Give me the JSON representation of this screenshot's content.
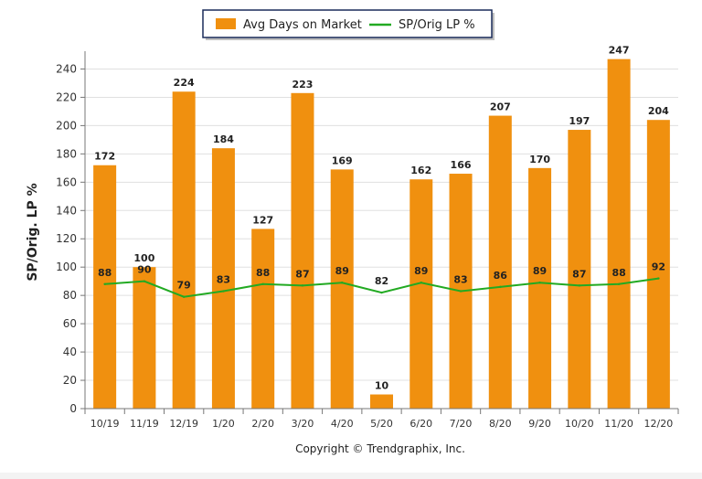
{
  "chart_data": {
    "type": "bar",
    "categories": [
      "10/19",
      "11/19",
      "12/19",
      "1/20",
      "2/20",
      "3/20",
      "4/20",
      "5/20",
      "6/20",
      "7/20",
      "8/20",
      "9/20",
      "10/20",
      "11/20",
      "12/20"
    ],
    "series": [
      {
        "name": "Avg Days on Market",
        "type": "bar",
        "color": "#f0900f",
        "values": [
          172,
          100,
          224,
          184,
          127,
          223,
          169,
          10,
          162,
          166,
          207,
          170,
          197,
          247,
          204
        ]
      },
      {
        "name": "SP/Orig LP %",
        "type": "line",
        "color": "#22aa22",
        "values": [
          88,
          90,
          79,
          83,
          88,
          87,
          89,
          82,
          89,
          83,
          86,
          89,
          87,
          88,
          92
        ]
      }
    ],
    "ylabel": "SP/Orig. LP %",
    "ylim": [
      0,
      250
    ],
    "yticks": [
      0,
      20,
      40,
      60,
      80,
      100,
      120,
      140,
      160,
      180,
      200,
      220,
      240
    ],
    "grid": true,
    "legend_position": "top-center",
    "copyright": "Copyright © Trendgraphix, Inc."
  }
}
